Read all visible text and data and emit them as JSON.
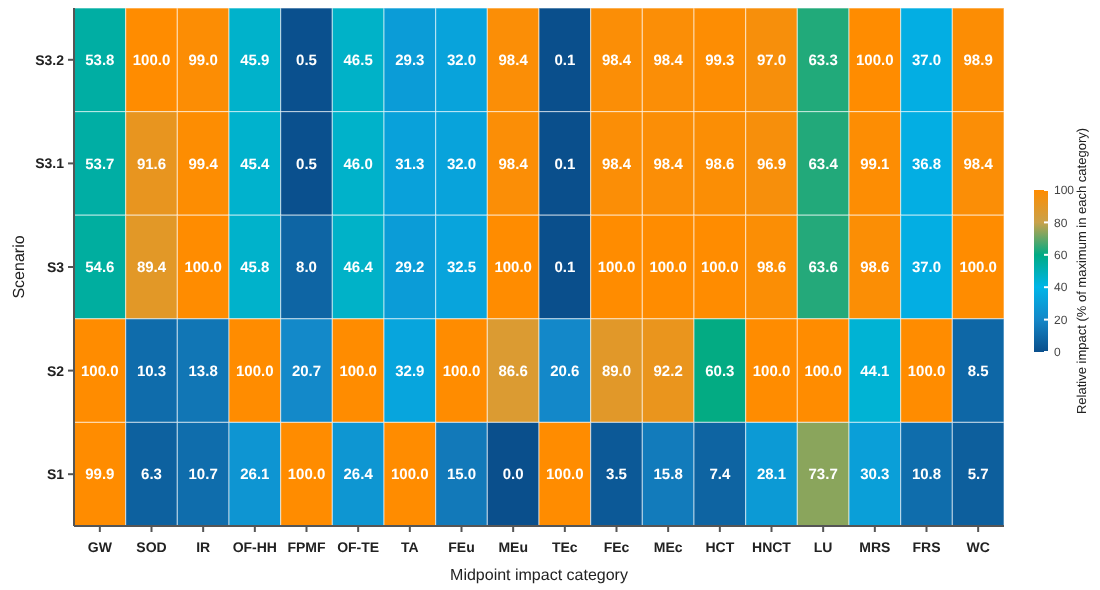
{
  "chart_data": {
    "type": "heatmap",
    "xlabel": "Midpoint impact category",
    "ylabel": "Scenario",
    "clabel": "Relative impact (% of maximum in each category)",
    "categories": [
      "GW",
      "SOD",
      "IR",
      "OF-HH",
      "FPMF",
      "OF-TE",
      "TA",
      "FEu",
      "MEu",
      "TEc",
      "FEc",
      "MEc",
      "HCT",
      "HNCT",
      "LU",
      "MRS",
      "FRS",
      "WC"
    ],
    "y_categories": [
      "S3.2",
      "S3.1",
      "S3",
      "S2",
      "S1"
    ],
    "cells": [
      [
        53.8,
        100.0,
        99.0,
        45.9,
        0.5,
        46.5,
        29.3,
        32.0,
        98.4,
        0.1,
        98.4,
        98.4,
        99.3,
        97.0,
        63.3,
        100.0,
        37.0,
        98.9
      ],
      [
        53.7,
        91.6,
        99.4,
        45.4,
        0.5,
        46.0,
        31.3,
        32.0,
        98.4,
        0.1,
        98.4,
        98.4,
        98.6,
        96.9,
        63.4,
        99.1,
        36.8,
        98.4
      ],
      [
        54.6,
        89.4,
        100.0,
        45.8,
        8.0,
        46.4,
        29.2,
        32.5,
        100.0,
        0.1,
        100.0,
        100.0,
        100.0,
        98.6,
        63.6,
        98.6,
        37.0,
        100.0
      ],
      [
        100.0,
        10.3,
        13.8,
        100.0,
        20.7,
        100.0,
        32.9,
        100.0,
        86.6,
        20.6,
        89.0,
        92.2,
        60.3,
        100.0,
        100.0,
        44.1,
        100.0,
        8.5
      ],
      [
        99.9,
        6.3,
        10.7,
        26.1,
        100.0,
        26.4,
        100.0,
        15.0,
        0.0,
        100.0,
        3.5,
        15.8,
        7.4,
        28.1,
        73.7,
        30.3,
        10.8,
        5.7
      ]
    ],
    "cell_labels": [
      [
        "53.8",
        "100.0",
        "99.0",
        "45.9",
        "0.5",
        "46.5",
        "29.3",
        "32.0",
        "98.4",
        "0.1",
        "98.4",
        "98.4",
        "99.3",
        "97.0",
        "63.3",
        "100.0",
        "37.0",
        "98.9"
      ],
      [
        "53.7",
        "91.6",
        "99.4",
        "45.4",
        "0.5",
        "46.0",
        "31.3",
        "32.0",
        "98.4",
        "0.1",
        "98.4",
        "98.4",
        "98.6",
        "96.9",
        "63.4",
        "99.1",
        "36.8",
        "98.4"
      ],
      [
        "54.6",
        "89.4",
        "100.0",
        "45.8",
        "8.0",
        "46.4",
        "29.2",
        "32.5",
        "100.0",
        "0.1",
        "100.0",
        "100.0",
        "100.0",
        "98.6",
        "63.6",
        "98.6",
        "37.0",
        "100.0"
      ],
      [
        "100.0",
        "10.3",
        "13.8",
        "100.0",
        "20.7",
        "100.0",
        "32.9",
        "100.0",
        "86.6",
        "20.6",
        "89.0",
        "92.2",
        "60.3",
        "100.0",
        "100.0",
        "44.1",
        "100.0",
        "8.5"
      ],
      [
        "99.9",
        "6.3",
        "10.7",
        "26.1",
        "100.0",
        "26.4",
        "100.0",
        "15.0",
        "0.0",
        "100.0",
        "3.5",
        "15.8",
        "7.4",
        "28.1",
        "73.7",
        "30.3",
        "10.8",
        "5.7"
      ]
    ],
    "clim": [
      0,
      100
    ],
    "cticks": [
      0,
      20,
      40,
      60,
      80,
      100
    ],
    "data_labels": true
  }
}
